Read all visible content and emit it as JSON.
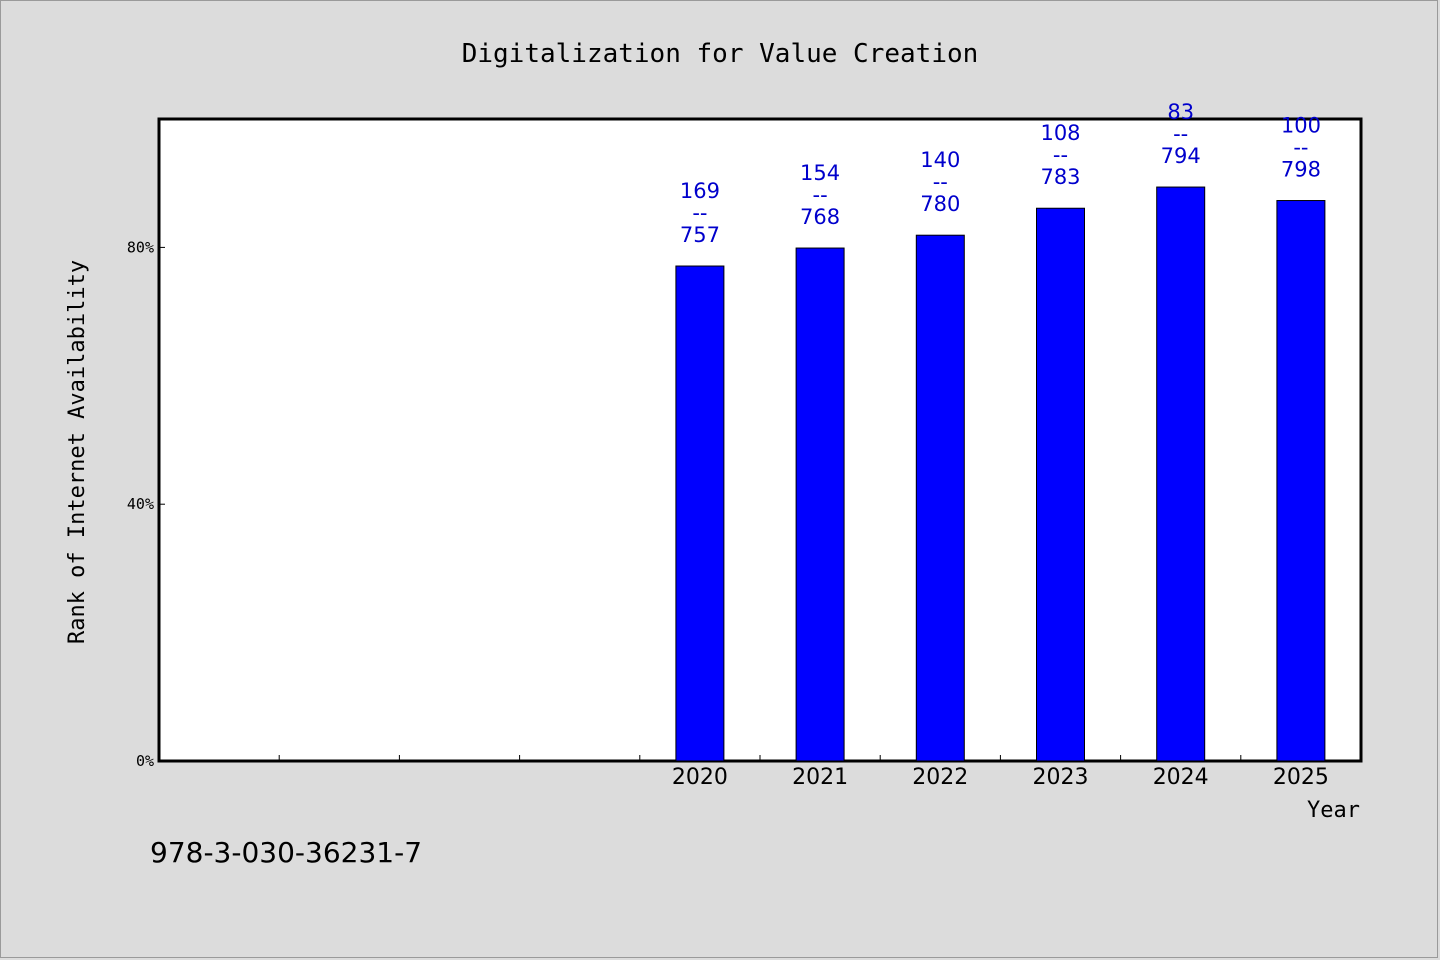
{
  "chart_data": {
    "type": "bar",
    "title": "Digitalization for Value Creation",
    "xlabel": "Year",
    "ylabel": "Rank of Internet Availability",
    "categories": [
      "",
      "",
      "",
      "",
      "2020",
      "2021",
      "2022",
      "2023",
      "2024",
      "2025"
    ],
    "values": [
      null,
      null,
      null,
      null,
      77.1,
      79.9,
      81.9,
      86.1,
      89.4,
      87.3
    ],
    "data_labels": [
      null,
      null,
      null,
      null,
      {
        "top": "169",
        "sep": "--",
        "bottom": "757"
      },
      {
        "top": "154",
        "sep": "--",
        "bottom": "768"
      },
      {
        "top": "140",
        "sep": "--",
        "bottom": "780"
      },
      {
        "top": "108",
        "sep": "--",
        "bottom": "783"
      },
      {
        "top": "83",
        "sep": "--",
        "bottom": "794"
      },
      {
        "top": "100",
        "sep": "--",
        "bottom": "798"
      }
    ],
    "ylim": [
      0,
      100
    ],
    "yticks": [
      0,
      40,
      80
    ],
    "ytick_labels": [
      "0%",
      "40%",
      "80%"
    ],
    "grid": false,
    "bar_color": "#0000ff",
    "label_color": "#0000cc"
  },
  "footnote": "978-3-030-36231-7"
}
